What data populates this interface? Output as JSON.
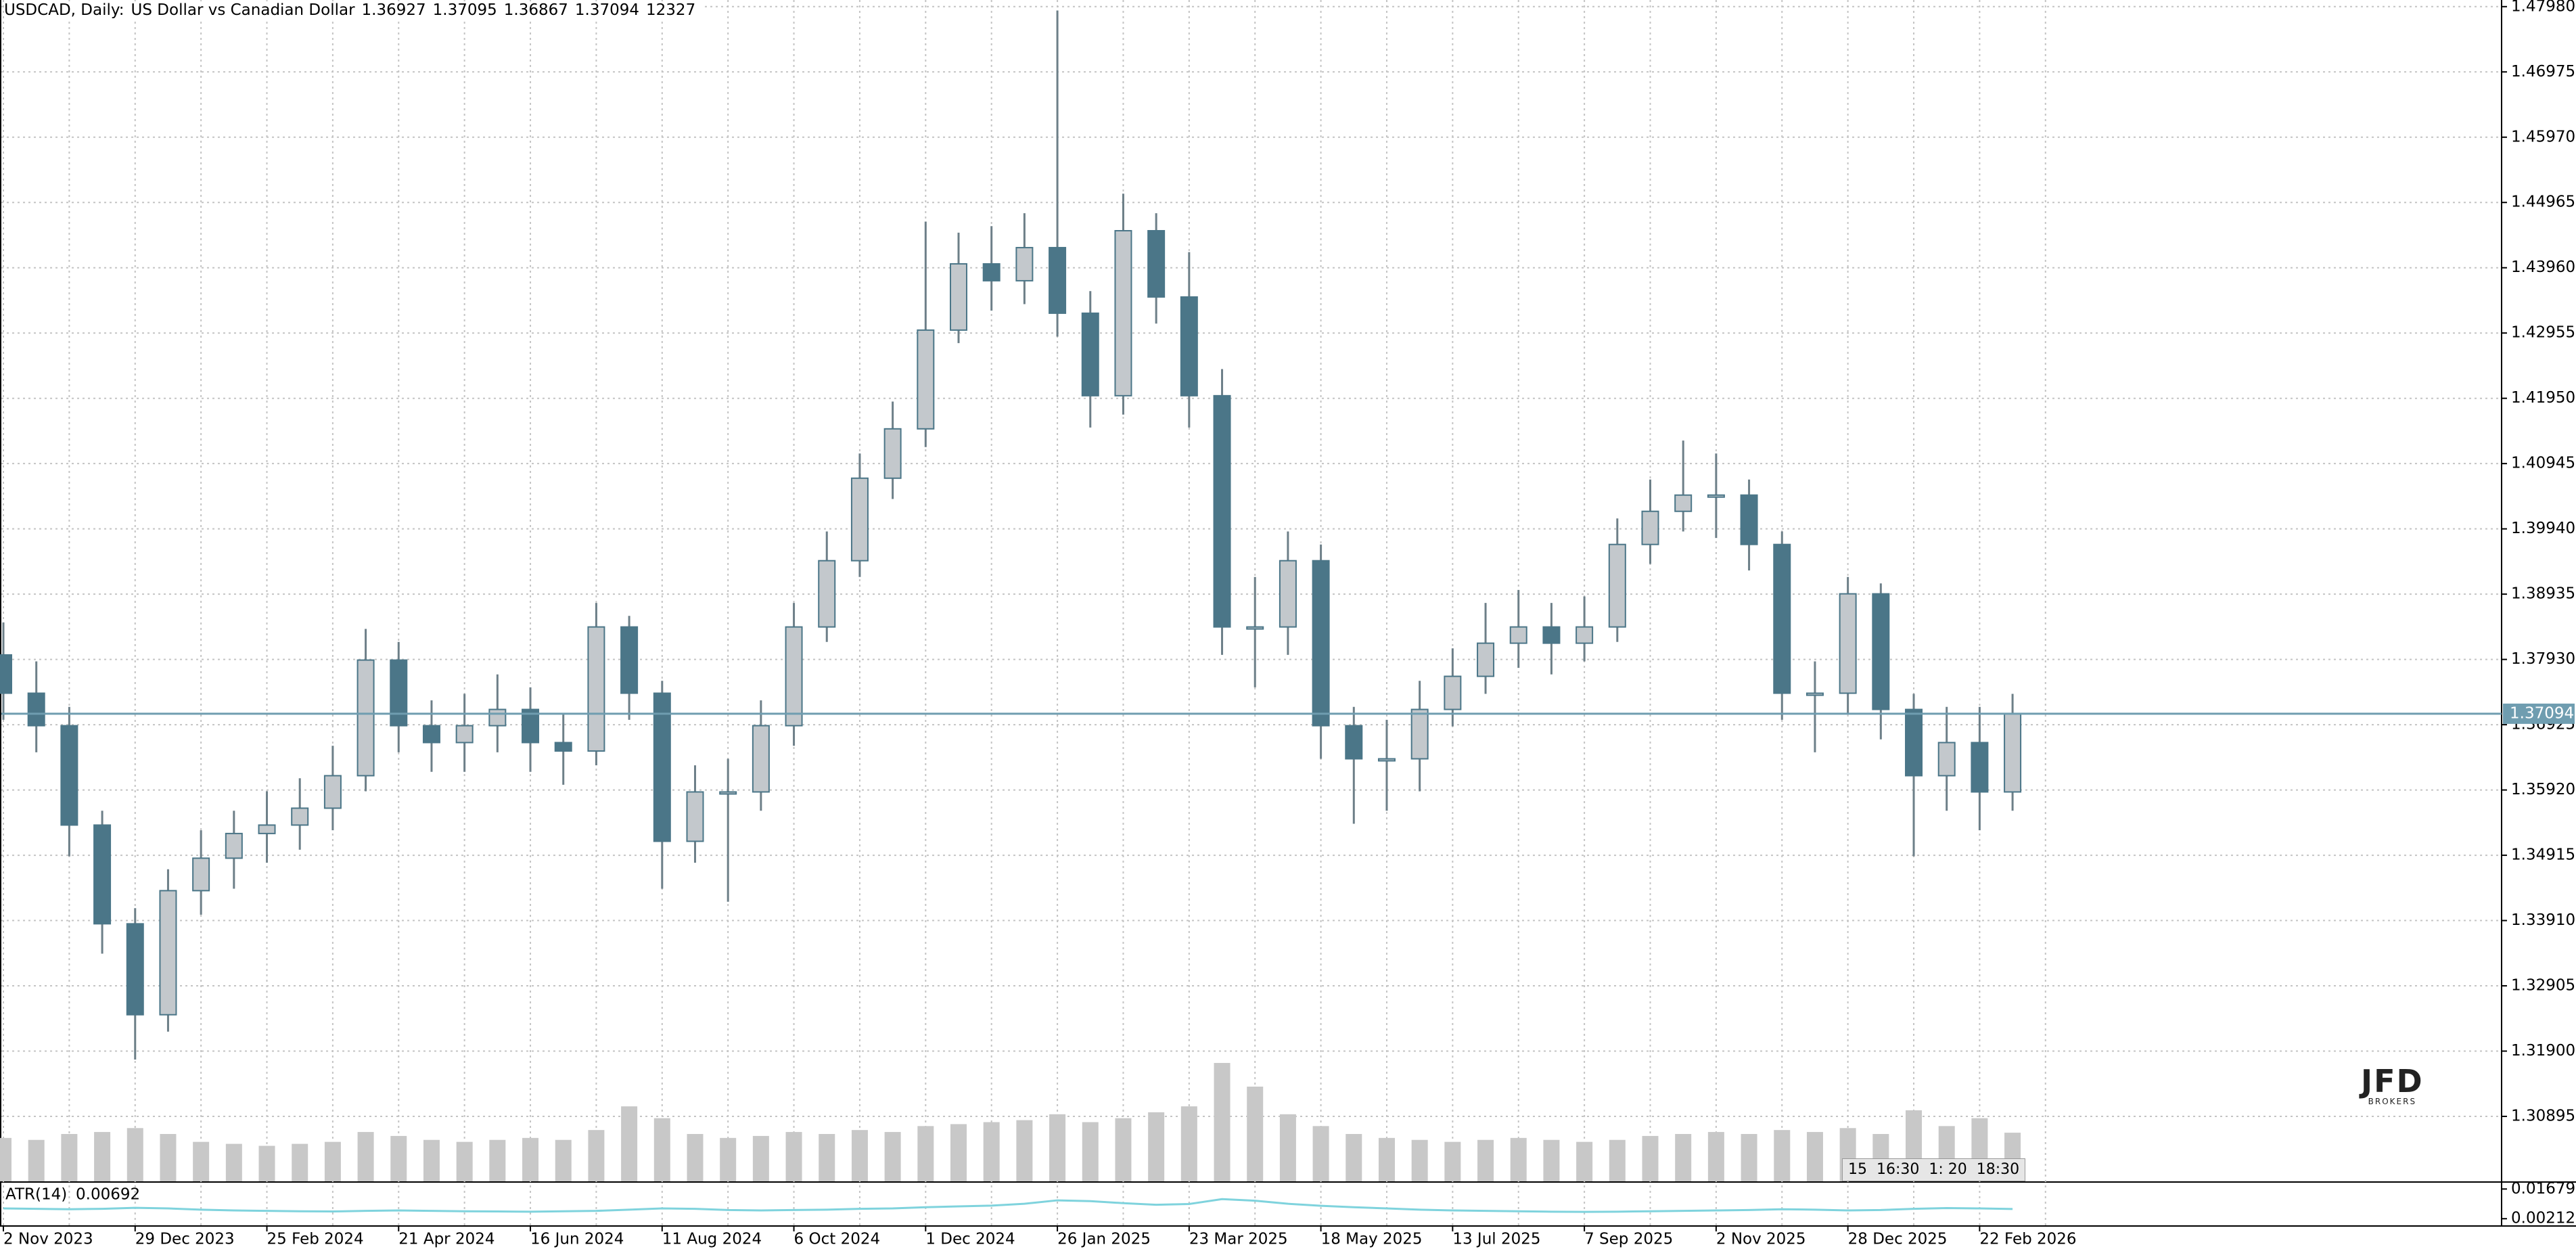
{
  "header": {
    "symbol": "USDCAD, Daily:",
    "description": "US Dollar vs Canadian Dollar",
    "open": 1.36927,
    "high": 1.37095,
    "low": 1.36867,
    "close": 1.37094,
    "volume": 12327
  },
  "logo": {
    "name": "JFD",
    "tagline": "BROKERS"
  },
  "time_overlay": "15  16:30  1: 20  18:30",
  "chart_data": {
    "type": "candlestick",
    "ylim": [
      1.29895,
      1.48082
    ],
    "yticks": [
      {
        "value": 1.4798,
        "label": "1.47980"
      },
      1.46975,
      {
        "value": 1.4597,
        "label": "1.45970"
      },
      1.44965,
      {
        "value": 1.4396,
        "label": "1.43960"
      },
      1.42955,
      {
        "value": 1.4195,
        "label": "1.41950"
      },
      1.40945,
      {
        "value": 1.3994,
        "label": "1.39940"
      },
      1.38935,
      {
        "value": 1.3793,
        "label": "1.37930"
      },
      1.36925,
      {
        "value": 1.3592,
        "label": "1.35920"
      },
      1.34915,
      {
        "value": 1.3391,
        "label": "1.33910"
      },
      1.32905,
      {
        "value": 1.319,
        "label": "1.31900"
      },
      1.30895
    ],
    "xticks": [
      {
        "value": 0,
        "label": "2 Nov 2023"
      },
      {
        "value": 4,
        "label": "29 Dec 2023"
      },
      {
        "value": 8,
        "label": "25 Feb 2024"
      },
      {
        "value": 12,
        "label": "21 Apr 2024"
      },
      {
        "value": 16,
        "label": "16 Jun 2024"
      },
      {
        "value": 20,
        "label": "11 Aug 2024"
      },
      {
        "value": 24,
        "label": "6 Oct 2024"
      },
      {
        "value": 28,
        "label": "1 Dec 2024"
      },
      {
        "value": 32,
        "label": "26 Jan 2025"
      },
      {
        "value": 36,
        "label": "23 Mar 2025"
      },
      {
        "value": 40,
        "label": "18 May 2025"
      },
      {
        "value": 44,
        "label": "13 Jul 2025"
      },
      {
        "value": 48,
        "label": "7 Sep 2025"
      },
      {
        "value": 52,
        "label": "2 Nov 2025"
      },
      {
        "value": 56,
        "label": "28 Dec 2025"
      },
      {
        "value": 60,
        "label": "22 Feb 2026"
      }
    ],
    "grid": true,
    "up_color": "#c3c8cc",
    "down_color": "#4b7688",
    "volume_color": "#c8c8c8",
    "last_price": 1.37094,
    "last_price_color": "#6f9db0",
    "open": [
      1.38,
      1.3741,
      1.3691,
      1.3538,
      1.3386,
      1.3246,
      1.3437,
      1.3487,
      1.3525,
      1.3538,
      1.3564,
      1.3614,
      1.3792,
      1.3691,
      1.3665,
      1.3691,
      1.3716,
      1.3665,
      1.3652,
      1.3843,
      1.3741,
      1.3513,
      1.3589,
      1.3589,
      1.3691,
      1.3843,
      1.3945,
      1.4072,
      1.4148,
      1.43,
      1.4402,
      1.4376,
      1.4427,
      1.4326,
      1.4199,
      1.4453,
      1.4351,
      1.4199,
      1.3843,
      1.3843,
      1.3945,
      1.3691,
      1.364,
      1.364,
      1.3716,
      1.3767,
      1.3818,
      1.3843,
      1.3818,
      1.3843,
      1.397,
      1.4021,
      1.4046,
      1.4046,
      1.397,
      1.3741,
      1.3741,
      1.3894,
      1.3716,
      1.3614,
      1.3665,
      1.3589
    ],
    "high": [
      1.385,
      1.379,
      1.372,
      1.356,
      1.341,
      1.347,
      1.353,
      1.356,
      1.359,
      1.361,
      1.366,
      1.384,
      1.382,
      1.373,
      1.374,
      1.377,
      1.375,
      1.371,
      1.388,
      1.386,
      1.376,
      1.363,
      1.364,
      1.373,
      1.388,
      1.399,
      1.411,
      1.419,
      1.4467,
      1.445,
      1.446,
      1.448,
      1.4792,
      1.436,
      1.451,
      1.448,
      1.442,
      1.424,
      1.392,
      1.399,
      1.397,
      1.372,
      1.37,
      1.376,
      1.381,
      1.388,
      1.39,
      1.388,
      1.389,
      1.401,
      1.407,
      1.413,
      1.411,
      1.407,
      1.399,
      1.379,
      1.392,
      1.391,
      1.374,
      1.372,
      1.372,
      1.374
    ],
    "low": [
      1.37,
      1.365,
      1.349,
      1.334,
      1.3177,
      1.322,
      1.34,
      1.344,
      1.348,
      1.35,
      1.353,
      1.359,
      1.365,
      1.362,
      1.362,
      1.365,
      1.362,
      1.36,
      1.363,
      1.37,
      1.344,
      1.348,
      1.342,
      1.356,
      1.366,
      1.382,
      1.392,
      1.404,
      1.412,
      1.428,
      1.433,
      1.434,
      1.429,
      1.415,
      1.417,
      1.431,
      1.415,
      1.38,
      1.375,
      1.38,
      1.364,
      1.354,
      1.356,
      1.359,
      1.369,
      1.374,
      1.378,
      1.377,
      1.379,
      1.382,
      1.394,
      1.399,
      1.398,
      1.393,
      1.37,
      1.365,
      1.371,
      1.367,
      1.349,
      1.356,
      1.353,
      1.356
    ],
    "close": [
      1.3741,
      1.3691,
      1.3538,
      1.3386,
      1.3246,
      1.3437,
      1.3487,
      1.3525,
      1.3538,
      1.3564,
      1.3614,
      1.3792,
      1.3691,
      1.3665,
      1.3691,
      1.3716,
      1.3665,
      1.3652,
      1.3843,
      1.3741,
      1.3513,
      1.3589,
      1.3589,
      1.3691,
      1.3843,
      1.3945,
      1.4072,
      1.4148,
      1.43,
      1.4402,
      1.4376,
      1.4427,
      1.4326,
      1.4199,
      1.4453,
      1.4351,
      1.4199,
      1.3843,
      1.3843,
      1.3945,
      1.3691,
      1.364,
      1.364,
      1.3716,
      1.3767,
      1.3818,
      1.3843,
      1.3818,
      1.3843,
      1.397,
      1.4021,
      1.4046,
      1.4046,
      1.397,
      1.3741,
      1.3741,
      1.3894,
      1.3716,
      1.3614,
      1.3665,
      1.3589,
      1.37094
    ],
    "volume": [
      11000,
      10500,
      12000,
      12500,
      13500,
      12000,
      10000,
      9500,
      9000,
      9500,
      10000,
      12500,
      11500,
      10500,
      10000,
      10500,
      11000,
      10500,
      13000,
      19000,
      16000,
      12000,
      11000,
      11500,
      12500,
      12000,
      13000,
      12500,
      14000,
      14500,
      15000,
      15500,
      17000,
      15000,
      16000,
      17500,
      19000,
      30000,
      24000,
      17000,
      14000,
      12000,
      11000,
      10500,
      10000,
      10500,
      11000,
      10500,
      10000,
      10500,
      11500,
      12000,
      12500,
      12000,
      13000,
      12500,
      13500,
      12000,
      18000,
      14000,
      16000,
      12327
    ],
    "atr": {
      "name": "ATR(14)",
      "value": 0.00692,
      "color": "#7fd3dd",
      "ylim": [
        -0.00114,
        0.01924
      ],
      "yticks": [
        0.01679,
        0.00212
      ],
      "values": [
        0.0072,
        0.007,
        0.0068,
        0.007,
        0.0075,
        0.0072,
        0.0066,
        0.0062,
        0.006,
        0.0058,
        0.0057,
        0.006,
        0.0062,
        0.006,
        0.0058,
        0.0057,
        0.0056,
        0.0058,
        0.006,
        0.0066,
        0.0072,
        0.007,
        0.0064,
        0.0062,
        0.0064,
        0.0066,
        0.007,
        0.0072,
        0.0078,
        0.0082,
        0.0086,
        0.0095,
        0.0112,
        0.0108,
        0.0098,
        0.009,
        0.0094,
        0.0118,
        0.011,
        0.0095,
        0.0085,
        0.0078,
        0.0072,
        0.0066,
        0.0062,
        0.006,
        0.0058,
        0.0056,
        0.0055,
        0.0056,
        0.0058,
        0.006,
        0.0062,
        0.0064,
        0.0068,
        0.0066,
        0.0062,
        0.0064,
        0.007,
        0.0074,
        0.0072,
        0.0069
      ]
    }
  }
}
